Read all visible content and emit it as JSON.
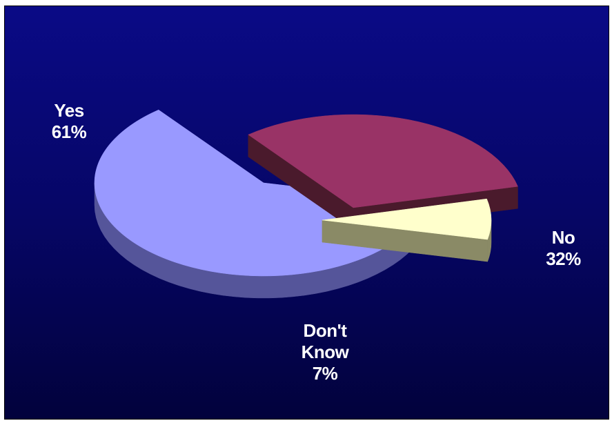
{
  "chart_data": {
    "type": "pie",
    "title": "",
    "slices": [
      {
        "name": "Yes",
        "label": "Yes",
        "value": 61,
        "value_label": "61%",
        "color": "#9999ff",
        "side_color": "#55559a"
      },
      {
        "name": "No",
        "label": "No",
        "value": 32,
        "value_label": "32%",
        "color": "#993366",
        "side_color": "#4a1a2c"
      },
      {
        "name": "Don't Know",
        "label_lines": [
          "Don't",
          "Know"
        ],
        "value": 7,
        "value_label": "7%",
        "color": "#ffffcc",
        "side_color": "#8a8a66"
      }
    ],
    "style": "3d-exploded",
    "legend": "none",
    "background": [
      "#0a0a86",
      "#02023c"
    ]
  }
}
